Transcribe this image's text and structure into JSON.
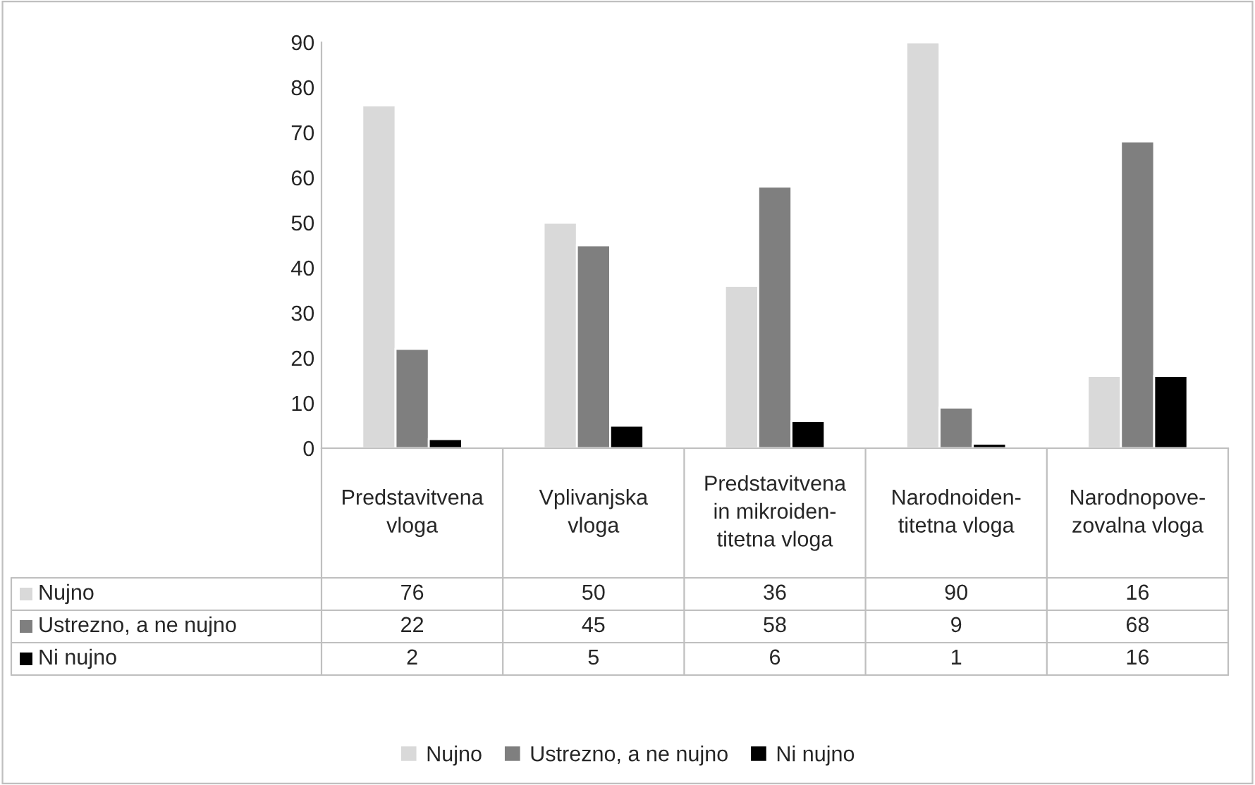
{
  "chart_data": {
    "type": "bar",
    "categories": [
      "Predstavitvena\nvloga",
      "Vplivanjska\nvloga",
      "Predstavitvena\nin mikroiden-\ntitetna vloga",
      "Narodnoiden-\ntitetna vloga",
      "Narodnopove-\nzovalna vloga"
    ],
    "series": [
      {
        "name": "Nujno",
        "color": "#d9d9d9",
        "values": [
          76,
          50,
          36,
          90,
          16
        ]
      },
      {
        "name": "Ustrezno, a ne nujno",
        "color": "#7f7f7f",
        "values": [
          22,
          45,
          58,
          9,
          68
        ]
      },
      {
        "name": "Ni nujno",
        "color": "#000000",
        "values": [
          2,
          5,
          6,
          1,
          16
        ]
      }
    ],
    "ylim": [
      0,
      90
    ],
    "yticks": [
      0,
      10,
      20,
      30,
      40,
      50,
      60,
      70,
      80,
      90
    ],
    "data_labels": true,
    "legend": "bottom"
  }
}
